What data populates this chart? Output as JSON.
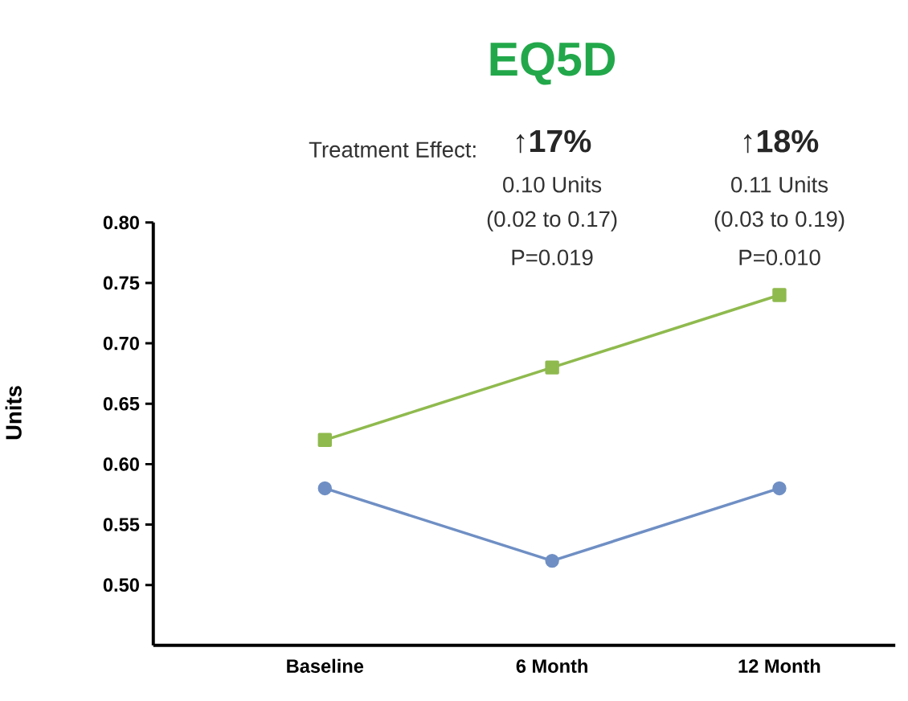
{
  "chart_data": {
    "type": "line",
    "title": "EQ5D",
    "ylabel": "Units",
    "categories": [
      "Baseline",
      "6 Month",
      "12 Month"
    ],
    "series": [
      {
        "color": "#8fba4e",
        "marker": "square",
        "values": [
          0.62,
          0.68,
          0.74
        ]
      },
      {
        "color": "#6f8fc4",
        "marker": "circle",
        "values": [
          0.58,
          0.52,
          0.58
        ]
      }
    ],
    "ylim": [
      0.45,
      0.8
    ],
    "yticks": [
      {
        "value": 0.5,
        "label": "0.50"
      },
      0.55,
      {
        "value": 0.6,
        "label": "0.60"
      },
      0.65,
      {
        "value": 0.7,
        "label": "0.70"
      },
      0.75,
      {
        "value": 0.8,
        "label": "0.80"
      }
    ],
    "grid": false,
    "annotations": [
      "Treatment Effect:",
      "↑**17%**",
      "0.10 Units",
      "(0.02 to 0.17)",
      "P=0.019",
      "↑**18%**",
      "0.11 Units",
      "(0.03 to 0.19)",
      "P=0.010"
    ]
  }
}
